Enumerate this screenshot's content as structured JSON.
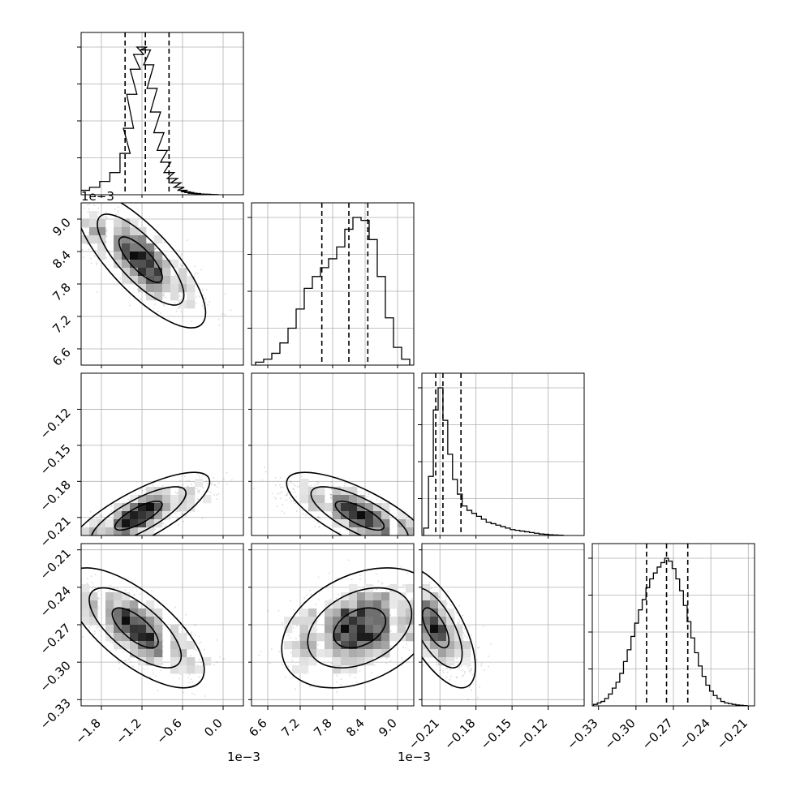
{
  "chart_data": {
    "type": "corner",
    "parameters": [
      {
        "id": "p1",
        "label": "",
        "offset_text": "1e−3",
        "range": [
          -0.0021,
          0.0003
        ],
        "ticks": [
          -0.0018,
          -0.0012,
          -0.0006,
          0.0
        ],
        "tick_labels": [
          "−1.8",
          "−1.2",
          "−0.6",
          "0.0"
        ],
        "quantiles": [
          -0.00145,
          -0.00115,
          -0.0008
        ]
      },
      {
        "id": "p2",
        "label": "",
        "offset_text": "1e−3",
        "range": [
          0.0063,
          0.0093
        ],
        "ticks": [
          0.0066,
          0.0072,
          0.0078,
          0.0084,
          0.009
        ],
        "tick_labels": [
          "6.6",
          "7.2",
          "7.8",
          "8.4",
          "9.0"
        ],
        "quantiles": [
          0.0076,
          0.0081,
          0.00845
        ]
      },
      {
        "id": "p3",
        "label": "",
        "offset_text": "",
        "range": [
          -0.225,
          -0.09
        ],
        "ticks": [
          -0.21,
          -0.18,
          -0.15,
          -0.12
        ],
        "tick_labels": [
          "−0.21",
          "−0.18",
          "−0.15",
          "−0.12"
        ],
        "quantiles": [
          -0.2135,
          -0.2075,
          -0.1925
        ]
      },
      {
        "id": "p4",
        "label": "",
        "offset_text": "",
        "range": [
          -0.335,
          -0.205
        ],
        "ticks": [
          -0.33,
          -0.3,
          -0.27,
          -0.24,
          -0.21
        ],
        "tick_labels": [
          "−0.33",
          "−0.30",
          "−0.27",
          "−0.24",
          "−0.21"
        ],
        "quantiles": [
          -0.2915,
          -0.2755,
          -0.2585
        ]
      }
    ],
    "marginals": [
      {
        "param": "p1",
        "bins": [
          -0.00205,
          -0.0019,
          -0.00175,
          -0.0016,
          -0.00145,
          -0.0014,
          -0.00135,
          -0.0013,
          -0.00125,
          -0.0012,
          -0.00115,
          -0.0011,
          -0.00105,
          -0.001,
          -0.00095,
          -0.0009,
          -0.00085,
          -0.0008,
          -0.00075,
          -0.0007,
          -0.00065,
          -0.0006,
          -0.00055,
          -0.0005,
          -0.00045,
          -0.0004,
          -0.00035,
          -0.0003,
          -0.00025,
          -0.0002,
          -0.00015
        ],
        "counts": [
          0.03,
          0.05,
          0.09,
          0.15,
          0.28,
          0.45,
          0.68,
          0.85,
          0.95,
          1.0,
          0.98,
          0.88,
          0.72,
          0.56,
          0.42,
          0.3,
          0.22,
          0.15,
          0.11,
          0.08,
          0.05,
          0.03,
          0.02,
          0.015,
          0.01,
          0.008,
          0.005,
          0.004,
          0.003,
          0.002,
          0.001
        ]
      },
      {
        "param": "p2",
        "bins": [
          0.00645,
          0.0066,
          0.00675,
          0.0069,
          0.00705,
          0.0072,
          0.00735,
          0.0075,
          0.00765,
          0.0078,
          0.00795,
          0.0081,
          0.00825,
          0.0084,
          0.00855,
          0.0087,
          0.00885,
          0.009,
          0.00915
        ],
        "counts": [
          0.02,
          0.04,
          0.08,
          0.15,
          0.25,
          0.38,
          0.52,
          0.6,
          0.66,
          0.72,
          0.8,
          0.92,
          1.0,
          0.98,
          0.85,
          0.6,
          0.32,
          0.12,
          0.04
        ]
      },
      {
        "param": "p3",
        "bins": [
          -0.2215,
          -0.2175,
          -0.2135,
          -0.2095,
          -0.2055,
          -0.2015,
          -0.1975,
          -0.1935,
          -0.1895,
          -0.1855,
          -0.1815,
          -0.1775,
          -0.1735,
          -0.1695,
          -0.1655,
          -0.1615,
          -0.1575,
          -0.1535,
          -0.1495,
          -0.1455,
          -0.1415,
          -0.1375,
          -0.1335,
          -0.1295,
          -0.1255,
          -0.1215,
          -0.1175,
          -0.1135,
          -0.1095
        ],
        "counts": [
          0.05,
          0.4,
          0.85,
          1.0,
          0.78,
          0.55,
          0.38,
          0.28,
          0.2,
          0.17,
          0.15,
          0.13,
          0.11,
          0.09,
          0.08,
          0.07,
          0.06,
          0.05,
          0.04,
          0.035,
          0.03,
          0.025,
          0.02,
          0.015,
          0.01,
          0.008,
          0.005,
          0.003,
          0.002
        ]
      },
      {
        "param": "p4",
        "bins": [
          -0.3325,
          -0.3295,
          -0.3265,
          -0.3235,
          -0.3205,
          -0.3175,
          -0.3145,
          -0.3115,
          -0.3085,
          -0.3055,
          -0.3025,
          -0.2995,
          -0.2965,
          -0.2935,
          -0.2905,
          -0.2875,
          -0.2845,
          -0.2815,
          -0.2785,
          -0.2755,
          -0.2725,
          -0.2695,
          -0.2665,
          -0.2635,
          -0.2605,
          -0.2575,
          -0.2545,
          -0.2515,
          -0.2485,
          -0.2455,
          -0.2425,
          -0.2395,
          -0.2365,
          -0.2335,
          -0.2305,
          -0.2275,
          -0.2245,
          -0.2215,
          -0.2185,
          -0.2155,
          -0.2125
        ],
        "counts": [
          0.01,
          0.02,
          0.03,
          0.05,
          0.08,
          0.12,
          0.16,
          0.22,
          0.3,
          0.38,
          0.47,
          0.56,
          0.65,
          0.72,
          0.8,
          0.86,
          0.9,
          0.94,
          0.97,
          1.0,
          0.98,
          0.93,
          0.86,
          0.78,
          0.68,
          0.57,
          0.46,
          0.36,
          0.27,
          0.2,
          0.14,
          0.1,
          0.07,
          0.05,
          0.03,
          0.02,
          0.015,
          0.01,
          0.006,
          0.004,
          0.002
        ]
      }
    ],
    "joints": [
      {
        "x": "p1",
        "y": "p2",
        "mode": [
          -0.00122,
          0.00825
        ],
        "std": [
          0.00032,
          0.00042
        ],
        "corr": -0.78,
        "n_samples": 1400
      },
      {
        "x": "p1",
        "y": "p3",
        "mode": [
          -0.00125,
          -0.2085
        ],
        "std": [
          0.00035,
          0.012
        ],
        "corr": 0.78,
        "n_samples": 1400
      },
      {
        "x": "p2",
        "y": "p3",
        "mode": [
          0.0083,
          -0.2085
        ],
        "std": [
          0.00045,
          0.012
        ],
        "corr": -0.75,
        "n_samples": 1400
      },
      {
        "x": "p1",
        "y": "p4",
        "mode": [
          -0.0013,
          -0.2725
        ],
        "std": [
          0.00034,
          0.016
        ],
        "corr": -0.7,
        "n_samples": 1400
      },
      {
        "x": "p2",
        "y": "p4",
        "mode": [
          0.0083,
          -0.2725
        ],
        "std": [
          0.00048,
          0.016
        ],
        "corr": 0.35,
        "n_samples": 1400
      },
      {
        "x": "p3",
        "y": "p4",
        "mode": [
          -0.2135,
          -0.2725
        ],
        "std": [
          0.011,
          0.016
        ],
        "corr": -0.65,
        "n_samples": 1400
      }
    ],
    "contour_levels": [
      0.393,
      0.865,
      0.989
    ],
    "grid": true
  }
}
